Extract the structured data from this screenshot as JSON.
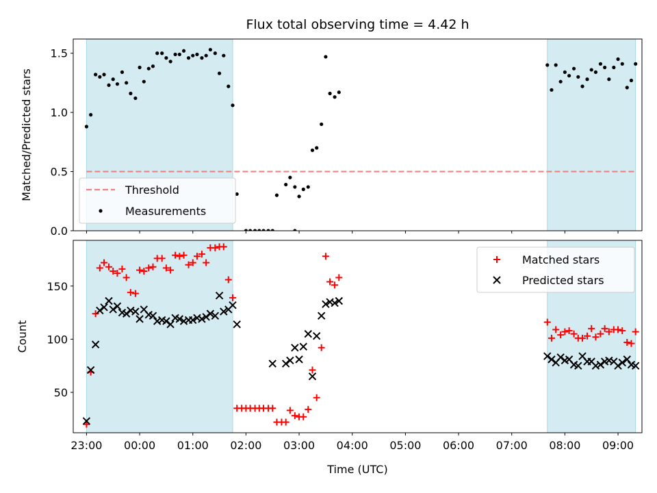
{
  "chart_data": [
    {
      "type": "scatter",
      "title": "Flux total observing time = 4.42 h",
      "ylabel": "Matched/Predicted stars",
      "xlabel": "",
      "x_axis": "hours after 22:00 UTC",
      "xlim": [
        0.75,
        11.45
      ],
      "ylim": [
        0,
        1.62
      ],
      "yticks": [
        0.0,
        0.5,
        1.0,
        1.5
      ],
      "ytick_labels": [
        "0.0",
        "0.5",
        "1.0",
        "1.5"
      ],
      "shaded_intervals": [
        [
          1.0,
          3.75
        ],
        [
          9.67,
          11.33
        ]
      ],
      "threshold": 0.5,
      "legend": {
        "placement": "lower-left",
        "entries": [
          "Threshold",
          "Measurements"
        ]
      },
      "series": [
        {
          "name": "Threshold",
          "kind": "hline",
          "y": 0.5,
          "x_range": [
            1.0,
            11.33
          ]
        },
        {
          "name": "Measurements",
          "kind": "points",
          "points": [
            [
              1.0,
              0.88
            ],
            [
              1.08,
              0.98
            ],
            [
              1.17,
              1.32
            ],
            [
              1.25,
              1.3
            ],
            [
              1.33,
              1.32
            ],
            [
              1.42,
              1.23
            ],
            [
              1.5,
              1.28
            ],
            [
              1.58,
              1.24
            ],
            [
              1.67,
              1.34
            ],
            [
              1.75,
              1.25
            ],
            [
              1.83,
              1.16
            ],
            [
              1.92,
              1.12
            ],
            [
              2.0,
              1.38
            ],
            [
              2.08,
              1.26
            ],
            [
              2.17,
              1.37
            ],
            [
              2.25,
              1.39
            ],
            [
              2.33,
              1.5
            ],
            [
              2.42,
              1.5
            ],
            [
              2.5,
              1.46
            ],
            [
              2.58,
              1.43
            ],
            [
              2.67,
              1.49
            ],
            [
              2.75,
              1.49
            ],
            [
              2.83,
              1.52
            ],
            [
              2.92,
              1.46
            ],
            [
              3.0,
              1.48
            ],
            [
              3.08,
              1.49
            ],
            [
              3.17,
              1.46
            ],
            [
              3.25,
              1.48
            ],
            [
              3.33,
              1.53
            ],
            [
              3.42,
              1.5
            ],
            [
              3.5,
              1.33
            ],
            [
              3.58,
              1.48
            ],
            [
              3.67,
              1.22
            ],
            [
              3.75,
              1.06
            ],
            [
              3.83,
              0.31
            ],
            [
              4.0,
              0.0
            ],
            [
              4.08,
              0.0
            ],
            [
              4.17,
              0.0
            ],
            [
              4.25,
              0.0
            ],
            [
              4.33,
              0.0
            ],
            [
              4.42,
              0.0
            ],
            [
              4.5,
              0.0
            ],
            [
              4.58,
              0.3
            ],
            [
              4.92,
              0.0
            ],
            [
              4.75,
              0.39
            ],
            [
              4.83,
              0.45
            ],
            [
              4.92,
              0.37
            ],
            [
              5.0,
              0.29
            ],
            [
              5.08,
              0.35
            ],
            [
              5.17,
              0.37
            ],
            [
              5.25,
              0.68
            ],
            [
              5.33,
              0.7
            ],
            [
              5.42,
              0.9
            ],
            [
              5.5,
              1.47
            ],
            [
              5.58,
              1.16
            ],
            [
              5.67,
              1.13
            ],
            [
              5.75,
              1.17
            ],
            [
              9.67,
              1.4
            ],
            [
              9.75,
              1.19
            ],
            [
              9.83,
              1.4
            ],
            [
              9.92,
              1.26
            ],
            [
              10.0,
              1.34
            ],
            [
              10.08,
              1.31
            ],
            [
              10.17,
              1.37
            ],
            [
              10.25,
              1.3
            ],
            [
              10.33,
              1.22
            ],
            [
              10.42,
              1.28
            ],
            [
              10.5,
              1.36
            ],
            [
              10.58,
              1.34
            ],
            [
              10.67,
              1.41
            ],
            [
              10.75,
              1.38
            ],
            [
              10.83,
              1.28
            ],
            [
              10.92,
              1.38
            ],
            [
              11.0,
              1.45
            ],
            [
              11.08,
              1.41
            ],
            [
              11.17,
              1.21
            ],
            [
              11.25,
              1.27
            ],
            [
              11.33,
              1.41
            ]
          ]
        }
      ]
    },
    {
      "type": "scatter",
      "title": "",
      "ylabel": "Count",
      "xlabel": "Time (UTC)",
      "x_axis": "hours after 22:00 UTC",
      "xlim": [
        0.75,
        11.45
      ],
      "ylim": [
        12,
        193
      ],
      "yticks": [
        50,
        100,
        150
      ],
      "ytick_labels": [
        "50",
        "100",
        "150"
      ],
      "xticks": [
        1,
        2,
        3,
        4,
        5,
        6,
        7,
        8,
        9,
        10,
        11
      ],
      "xtick_labels": [
        "23:00",
        "00:00",
        "01:00",
        "02:00",
        "03:00",
        "04:00",
        "05:00",
        "06:00",
        "07:00",
        "08:00",
        "09:00"
      ],
      "shaded_intervals": [
        [
          1.0,
          3.75
        ],
        [
          9.67,
          11.33
        ]
      ],
      "legend": {
        "placement": "top-right",
        "entries": [
          "Matched stars",
          "Predicted stars"
        ]
      },
      "series": [
        {
          "name": "Matched stars",
          "marker": "+",
          "color": "#ff0000",
          "points": [
            [
              1.0,
              20
            ],
            [
              1.08,
              69
            ],
            [
              1.17,
              124
            ],
            [
              1.25,
              167
            ],
            [
              1.33,
              172
            ],
            [
              1.42,
              168
            ],
            [
              1.5,
              164
            ],
            [
              1.58,
              162
            ],
            [
              1.67,
              166
            ],
            [
              1.75,
              158
            ],
            [
              1.83,
              144
            ],
            [
              1.92,
              143
            ],
            [
              2.0,
              165
            ],
            [
              2.08,
              164
            ],
            [
              2.17,
              167
            ],
            [
              2.25,
              168
            ],
            [
              2.33,
              176
            ],
            [
              2.42,
              176
            ],
            [
              2.5,
              167
            ],
            [
              2.58,
              165
            ],
            [
              2.67,
              179
            ],
            [
              2.75,
              178
            ],
            [
              2.83,
              179
            ],
            [
              2.92,
              170
            ],
            [
              3.0,
              172
            ],
            [
              3.08,
              178
            ],
            [
              3.17,
              180
            ],
            [
              3.25,
              172
            ],
            [
              3.33,
              186
            ],
            [
              3.42,
              186
            ],
            [
              3.5,
              187
            ],
            [
              3.58,
              187
            ],
            [
              3.67,
              156
            ],
            [
              3.75,
              139
            ],
            [
              3.83,
              35
            ],
            [
              3.92,
              35
            ],
            [
              4.0,
              35
            ],
            [
              4.08,
              35
            ],
            [
              4.17,
              35
            ],
            [
              4.25,
              35
            ],
            [
              4.33,
              35
            ],
            [
              4.42,
              35
            ],
            [
              4.5,
              35
            ],
            [
              4.58,
              22
            ],
            [
              4.67,
              22
            ],
            [
              4.75,
              22
            ],
            [
              4.83,
              33
            ],
            [
              4.92,
              28
            ],
            [
              5.0,
              27
            ],
            [
              5.08,
              27
            ],
            [
              5.17,
              34
            ],
            [
              5.25,
              71
            ],
            [
              5.33,
              45
            ],
            [
              5.42,
              92
            ],
            [
              5.5,
              178
            ],
            [
              5.58,
              154
            ],
            [
              5.67,
              151
            ],
            [
              5.75,
              158
            ],
            [
              9.67,
              116
            ],
            [
              9.75,
              101
            ],
            [
              9.83,
              109
            ],
            [
              9.92,
              104
            ],
            [
              10.0,
              107
            ],
            [
              10.08,
              108
            ],
            [
              10.17,
              105
            ],
            [
              10.25,
              101
            ],
            [
              10.33,
              101
            ],
            [
              10.42,
              103
            ],
            [
              10.5,
              110
            ],
            [
              10.58,
              102
            ],
            [
              10.67,
              105
            ],
            [
              10.75,
              110
            ],
            [
              10.83,
              107
            ],
            [
              10.92,
              109
            ],
            [
              11.0,
              109
            ],
            [
              11.08,
              108
            ],
            [
              11.17,
              97
            ],
            [
              11.25,
              96
            ],
            [
              11.33,
              107
            ]
          ]
        },
        {
          "name": "Predicted stars",
          "marker": "x",
          "color": "#000000",
          "points": [
            [
              1.0,
              23
            ],
            [
              1.08,
              71
            ],
            [
              1.17,
              95
            ],
            [
              1.25,
              127
            ],
            [
              1.33,
              130
            ],
            [
              1.42,
              136
            ],
            [
              1.5,
              128
            ],
            [
              1.58,
              131
            ],
            [
              1.67,
              125
            ],
            [
              1.75,
              124
            ],
            [
              1.83,
              127
            ],
            [
              1.92,
              126
            ],
            [
              2.0,
              119
            ],
            [
              2.08,
              128
            ],
            [
              2.17,
              123
            ],
            [
              2.25,
              122
            ],
            [
              2.33,
              117
            ],
            [
              2.42,
              118
            ],
            [
              2.5,
              117
            ],
            [
              2.58,
              114
            ],
            [
              2.67,
              120
            ],
            [
              2.75,
              119
            ],
            [
              2.83,
              117
            ],
            [
              2.92,
              118
            ],
            [
              3.0,
              118
            ],
            [
              3.08,
              120
            ],
            [
              3.17,
              119
            ],
            [
              3.25,
              121
            ],
            [
              3.33,
              124
            ],
            [
              3.42,
              122
            ],
            [
              3.5,
              141
            ],
            [
              3.58,
              126
            ],
            [
              3.67,
              128
            ],
            [
              3.75,
              132
            ],
            [
              3.83,
              114
            ],
            [
              4.5,
              77
            ],
            [
              4.75,
              77
            ],
            [
              4.83,
              80
            ],
            [
              4.92,
              92
            ],
            [
              5.0,
              81
            ],
            [
              5.08,
              93
            ],
            [
              5.17,
              105
            ],
            [
              5.25,
              65
            ],
            [
              5.33,
              103
            ],
            [
              5.42,
              122
            ],
            [
              5.5,
              133
            ],
            [
              5.58,
              135
            ],
            [
              5.67,
              134
            ],
            [
              5.75,
              136
            ],
            [
              9.67,
              84
            ],
            [
              9.75,
              81
            ],
            [
              9.83,
              78
            ],
            [
              9.92,
              83
            ],
            [
              10.0,
              80
            ],
            [
              10.08,
              81
            ],
            [
              10.17,
              76
            ],
            [
              10.25,
              75
            ],
            [
              10.33,
              84
            ],
            [
              10.42,
              79
            ],
            [
              10.5,
              79
            ],
            [
              10.58,
              75
            ],
            [
              10.67,
              76
            ],
            [
              10.75,
              79
            ],
            [
              10.83,
              80
            ],
            [
              10.92,
              79
            ],
            [
              11.0,
              75
            ],
            [
              11.08,
              78
            ],
            [
              11.17,
              81
            ],
            [
              11.25,
              76
            ],
            [
              11.33,
              75
            ]
          ]
        }
      ]
    }
  ]
}
